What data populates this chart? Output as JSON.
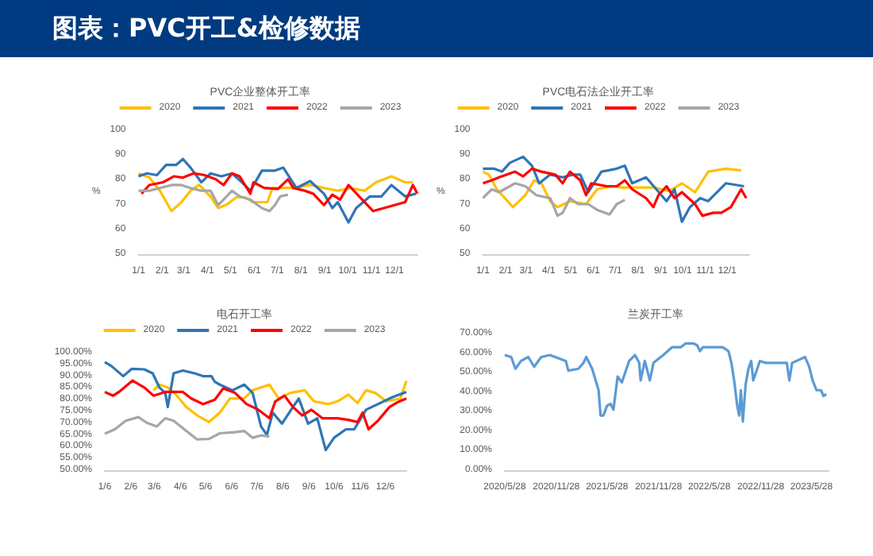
{
  "chart_data": [
    {
      "type": "other",
      "title": "图表：PVC开工&检修数据"
    },
    {
      "type": "line",
      "title": "PVC企业整体开工率",
      "ylabel": "%",
      "legend": "top",
      "marker": "none",
      "xlim": [
        "--01-01",
        "--12-31"
      ],
      "ylim": [
        50,
        100
      ],
      "yticks": [
        50,
        60,
        70,
        80,
        90,
        100
      ],
      "xticks": [
        {
          "value": "--01-01",
          "label": "1/1"
        },
        {
          "value": "--02-01",
          "label": "2/1"
        },
        {
          "value": "--03-01",
          "label": "3/1"
        },
        {
          "value": "--04-01",
          "label": "4/1"
        },
        {
          "value": "--05-01",
          "label": "5/1"
        },
        {
          "value": "--06-01",
          "label": "6/1"
        },
        {
          "value": "--07-01",
          "label": "7/1"
        },
        {
          "value": "--08-01",
          "label": "8/1"
        },
        {
          "value": "--09-01",
          "label": "9/1"
        },
        {
          "value": "--10-01",
          "label": "10/1"
        },
        {
          "value": "--11-01",
          "label": "11/1"
        },
        {
          "value": "--12-01",
          "label": "12/1"
        }
      ],
      "series": [
        {
          "name": "2020",
          "color": "#ffc000",
          "x": [
            "--01-01",
            "--01-15",
            "--01-29",
            "--02-13",
            "--02-26",
            "--03-10",
            "--03-21",
            "--04-05",
            "--04-15",
            "--04-26",
            "--05-09",
            "--05-20",
            "--05-30",
            "--06-18",
            "--06-25",
            "--07-09",
            "--07-26",
            "--08-13",
            "--08-31",
            "--09-18",
            "--10-05",
            "--10-23",
            "--11-07",
            "--11-27",
            "--12-15",
            "--12-25"
          ],
          "values": [
            82.6,
            81,
            75.6,
            67.4,
            71,
            75.6,
            78,
            73.3,
            68.6,
            70,
            73,
            73,
            71,
            71,
            76.7,
            76.7,
            76.7,
            78,
            76.7,
            75.6,
            76.7,
            75.6,
            79,
            81.4,
            79,
            79
          ]
        },
        {
          "name": "2021",
          "color": "#2e75b6",
          "x": [
            "--01-01",
            "--01-12",
            "--01-25",
            "--02-06",
            "--02-19",
            "--02-28",
            "--03-10",
            "--03-24",
            "--04-05",
            "--04-19",
            "--05-03",
            "--05-16",
            "--05-27",
            "--06-11",
            "--06-28",
            "--07-09",
            "--07-26",
            "--08-13",
            "--08-31",
            "--09-11",
            "--09-18",
            "--10-02",
            "--10-12",
            "--10-30",
            "--11-14",
            "--11-27",
            "--12-15",
            "--12-29"
          ],
          "values": [
            81.4,
            82.6,
            81.9,
            86,
            86,
            88.4,
            84.9,
            79,
            82.6,
            81.4,
            82.6,
            79,
            75.6,
            83.7,
            83.7,
            84.9,
            76.7,
            79.5,
            74.4,
            68.6,
            71,
            62.8,
            68.6,
            73.3,
            73.3,
            77.9,
            73.3,
            74.4
          ]
        },
        {
          "name": "2022",
          "color": "#ff0000",
          "x": [
            "--01-05",
            "--01-15",
            "--02-02",
            "--02-16",
            "--02-28",
            "--03-14",
            "--03-28",
            "--04-12",
            "--04-22",
            "--05-03",
            "--05-13",
            "--05-27",
            "--05-31",
            "--06-14",
            "--07-02",
            "--07-15",
            "--07-22",
            "--08-06",
            "--08-17",
            "--08-31",
            "--09-11",
            "--09-21",
            "--10-02",
            "--10-16",
            "--11-03",
            "--11-17",
            "--12-01",
            "--12-15",
            "--12-25",
            "--12-31"
          ],
          "values": [
            74.4,
            77.9,
            79,
            81.4,
            80.9,
            82.6,
            81.9,
            80.2,
            77.9,
            82.6,
            81.4,
            74.4,
            79,
            76.7,
            76.3,
            80.2,
            76.7,
            75.6,
            74.4,
            69.8,
            74,
            72,
            77.9,
            73.3,
            67.4,
            68.6,
            69.8,
            71,
            77.9,
            74.4
          ]
        },
        {
          "name": "2023",
          "color": "#a6a6a6",
          "x": [
            "--01-01",
            "--01-15",
            "--01-29",
            "--02-13",
            "--02-26",
            "--03-10",
            "--03-24",
            "--04-05",
            "--04-15",
            "--04-26",
            "--05-03",
            "--05-13",
            "--05-27",
            "--06-11",
            "--06-21",
            "--06-28",
            "--07-05",
            "--07-15"
          ],
          "values": [
            75.6,
            75.6,
            76.7,
            77.9,
            77.9,
            76.7,
            75.6,
            75.6,
            69.8,
            73.3,
            75.6,
            73.3,
            72,
            68.6,
            67.4,
            69.8,
            73.3,
            74
          ]
        }
      ]
    },
    {
      "type": "line",
      "title": "PVC电石法企业开工率",
      "ylabel": "%",
      "legend": "top",
      "marker": "none",
      "xlim": [
        "--01-01",
        "--12-31"
      ],
      "ylim": [
        50,
        100
      ],
      "yticks": [
        50,
        60,
        70,
        80,
        90,
        100
      ],
      "xticks": [
        {
          "value": "--01-01",
          "label": "1/1"
        },
        {
          "value": "--02-01",
          "label": "2/1"
        },
        {
          "value": "--03-01",
          "label": "3/1"
        },
        {
          "value": "--04-01",
          "label": "4/1"
        },
        {
          "value": "--05-01",
          "label": "5/1"
        },
        {
          "value": "--06-01",
          "label": "6/1"
        },
        {
          "value": "--07-01",
          "label": "7/1"
        },
        {
          "value": "--08-01",
          "label": "8/1"
        },
        {
          "value": "--09-01",
          "label": "9/1"
        },
        {
          "value": "--10-01",
          "label": "10/1"
        },
        {
          "value": "--11-01",
          "label": "11/1"
        },
        {
          "value": "--12-01",
          "label": "12/1"
        }
      ],
      "series": [
        {
          "name": "2020",
          "color": "#ffc000",
          "x": [
            "--01-01",
            "--01-09",
            "--01-20",
            "--02-11",
            "--02-28",
            "--03-12",
            "--03-22",
            "--04-03",
            "--04-13",
            "--04-30",
            "--05-22",
            "--06-06",
            "--06-27",
            "--07-10",
            "--08-01",
            "--08-22",
            "--09-13",
            "--09-30",
            "--10-18",
            "--11-05",
            "--11-29",
            "--12-20"
          ],
          "values": [
            83.3,
            82.1,
            76.2,
            69,
            73.8,
            79.8,
            78.6,
            71.4,
            69,
            71.4,
            70.2,
            76.2,
            77.4,
            76.9,
            76.9,
            76.9,
            75.5,
            78.6,
            75,
            83.3,
            84.5,
            83.8
          ]
        },
        {
          "name": "2021",
          "color": "#2e75b6",
          "x": [
            "--01-01",
            "--01-16",
            "--01-27",
            "--02-07",
            "--02-25",
            "--03-09",
            "--03-19",
            "--04-03",
            "--04-20",
            "--05-04",
            "--05-14",
            "--05-25",
            "--06-12",
            "--07-03",
            "--07-14",
            "--07-24",
            "--08-12",
            "--08-26",
            "--09-09",
            "--09-20",
            "--09-30",
            "--10-11",
            "--10-25",
            "--11-05",
            "--11-29",
            "--12-24"
          ],
          "values": [
            84.5,
            84.5,
            83.3,
            86.9,
            89.3,
            85.7,
            78.6,
            82.1,
            81,
            82.1,
            82.1,
            75,
            83.3,
            84.5,
            85.7,
            78.6,
            81,
            76.2,
            71.4,
            76.2,
            63.1,
            69,
            72.6,
            71.4,
            78.6,
            77.4
          ]
        },
        {
          "name": "2022",
          "color": "#ff0000",
          "x": [
            "--01-01",
            "--01-13",
            "--01-23",
            "--02-14",
            "--02-25",
            "--03-09",
            "--03-22",
            "--04-10",
            "--04-20",
            "--04-30",
            "--05-14",
            "--05-22",
            "--05-29",
            "--06-19",
            "--07-03",
            "--07-14",
            "--07-24",
            "--08-12",
            "--08-22",
            "--08-29",
            "--09-09",
            "--09-20",
            "--09-30",
            "--10-18",
            "--10-28",
            "--11-12",
            "--11-23",
            "--12-06",
            "--12-20",
            "--12-27"
          ],
          "values": [
            78.6,
            79.8,
            81,
            83.3,
            81.4,
            84.5,
            83.3,
            82.1,
            78.6,
            83.3,
            79.8,
            73.8,
            78.6,
            77.4,
            77.4,
            79.8,
            76.2,
            72.6,
            69,
            73.8,
            77.4,
            72.6,
            75,
            70.2,
            65.5,
            66.7,
            66.7,
            69,
            76.2,
            72.6
          ]
        },
        {
          "name": "2023",
          "color": "#a6a6a6",
          "x": [
            "--01-01",
            "--01-13",
            "--01-23",
            "--02-14",
            "--02-28",
            "--03-15",
            "--04-03",
            "--04-13",
            "--04-20",
            "--04-30",
            "--05-11",
            "--05-25",
            "--06-06",
            "--06-23",
            "--07-03",
            "--07-14"
          ],
          "values": [
            72.6,
            76.2,
            75,
            78.6,
            77.4,
            73.8,
            72.6,
            65.5,
            66.7,
            72.6,
            70.2,
            70.2,
            67.9,
            66,
            70.2,
            71.9
          ]
        }
      ]
    },
    {
      "type": "line",
      "title": "电石开工率",
      "legend": "top",
      "marker": "none",
      "xlim": [
        "--01-06",
        "--12-31"
      ],
      "ylim": [
        50,
        100
      ],
      "yticks": [
        {
          "value": 50,
          "label": "50.00%"
        },
        {
          "value": 55,
          "label": "55.00%"
        },
        {
          "value": 60,
          "label": "60.00%"
        },
        {
          "value": 65,
          "label": "65.00%"
        },
        {
          "value": 70,
          "label": "70.00%"
        },
        {
          "value": 75,
          "label": "75.00%"
        },
        {
          "value": 80,
          "label": "80.00%"
        },
        {
          "value": 85,
          "label": "85.00%"
        },
        {
          "value": 90,
          "label": "90.00%"
        },
        {
          "value": 95,
          "label": "95.00%"
        },
        {
          "value": 100,
          "label": "100.00%"
        }
      ],
      "xticks": [
        {
          "value": "--01-06",
          "label": "1/6"
        },
        {
          "value": "--02-06",
          "label": "2/6"
        },
        {
          "value": "--03-06",
          "label": "3/6"
        },
        {
          "value": "--04-06",
          "label": "4/6"
        },
        {
          "value": "--05-06",
          "label": "5/6"
        },
        {
          "value": "--06-06",
          "label": "6/6"
        },
        {
          "value": "--07-06",
          "label": "7/6"
        },
        {
          "value": "--08-06",
          "label": "8/6"
        },
        {
          "value": "--09-06",
          "label": "9/6"
        },
        {
          "value": "--10-06",
          "label": "10/6"
        },
        {
          "value": "--11-06",
          "label": "11/6"
        },
        {
          "value": "--12-06",
          "label": "12/6"
        }
      ],
      "series": [
        {
          "name": "2020",
          "color": "#ffc000",
          "x": [
            "--03-05",
            "--03-12",
            "--03-22",
            "--04-02",
            "--04-13",
            "--04-26",
            "--05-10",
            "--05-23",
            "--06-04",
            "--06-21",
            "--07-01",
            "--07-21",
            "--08-01",
            "--08-15",
            "--09-01",
            "--09-12",
            "--09-29",
            "--10-10",
            "--10-23",
            "--11-03",
            "--11-13",
            "--11-24",
            "--12-07",
            "--12-24",
            "--12-31"
          ],
          "values": [
            84,
            86.4,
            85.2,
            81.7,
            76.9,
            73.3,
            70.5,
            74.5,
            80.5,
            80.5,
            84,
            86.4,
            80.5,
            82.9,
            84,
            79.3,
            78.1,
            79.3,
            82.1,
            78.6,
            84,
            82.9,
            79.3,
            80.5,
            88
          ]
        },
        {
          "name": "2021",
          "color": "#2e75b6",
          "x": [
            "--01-06",
            "--01-14",
            "--01-28",
            "--02-07",
            "--02-22",
            "--03-04",
            "--03-12",
            "--03-19",
            "--03-22",
            "--03-29",
            "--04-09",
            "--04-23",
            "--05-03",
            "--05-13",
            "--05-17",
            "--05-23",
            "--06-07",
            "--06-21",
            "--07-01",
            "--07-11",
            "--07-18",
            "--07-25",
            "--08-05",
            "--08-18",
            "--08-25",
            "--09-05",
            "--09-16",
            "--09-26",
            "--10-06",
            "--10-20",
            "--10-30",
            "--11-13",
            "--11-27",
            "--12-14",
            "--12-31"
          ],
          "values": [
            96,
            94.3,
            90,
            93.1,
            92.9,
            91.2,
            85.2,
            82.9,
            76.9,
            91.2,
            92.4,
            91.2,
            90,
            90,
            87.6,
            86.4,
            84,
            86.4,
            82.9,
            68.6,
            65,
            74.5,
            69.8,
            76.9,
            80.5,
            69.8,
            72.1,
            58.6,
            63.8,
            67.4,
            67.4,
            75.7,
            78.1,
            81,
            83.3
          ]
        },
        {
          "name": "2022",
          "color": "#ff0000",
          "x": [
            "--01-06",
            "--01-16",
            "--01-24",
            "--02-08",
            "--02-22",
            "--03-05",
            "--03-19",
            "--04-09",
            "--04-19",
            "--05-03",
            "--05-17",
            "--05-27",
            "--06-10",
            "--06-24",
            "--07-08",
            "--07-21",
            "--07-28",
            "--08-08",
            "--08-18",
            "--08-29",
            "--09-09",
            "--09-22",
            "--10-10",
            "--10-23",
            "--11-03",
            "--11-09",
            "--11-16",
            "--11-27",
            "--12-11",
            "--12-21",
            "--12-31"
          ],
          "values": [
            83.3,
            81.7,
            83.6,
            88.1,
            85.2,
            81.7,
            83.3,
            83.3,
            80.5,
            78.1,
            80,
            84.8,
            82.9,
            78.1,
            75.7,
            72.1,
            79.3,
            81.7,
            76.9,
            73.3,
            75.7,
            72.1,
            72.1,
            71.4,
            70.5,
            74.5,
            67.4,
            71,
            76.9,
            79,
            80.5
          ]
        },
        {
          "name": "2023",
          "color": "#a6a6a6",
          "x": [
            "--01-06",
            "--01-18",
            "--01-31",
            "--02-15",
            "--02-25",
            "--03-09",
            "--03-19",
            "--03-29",
            "--04-13",
            "--04-26",
            "--05-10",
            "--05-23",
            "--06-10",
            "--06-21",
            "--07-01",
            "--07-11",
            "--07-21"
          ],
          "values": [
            65.5,
            67.4,
            71,
            72.6,
            70.2,
            68.6,
            72.1,
            71,
            66.7,
            63.1,
            63.3,
            65.7,
            66.2,
            66.7,
            63.8,
            64.8,
            64.3
          ]
        }
      ]
    },
    {
      "type": "line",
      "title": "兰炭开工率",
      "marker": "none",
      "xlim": [
        "2020-05-28",
        "2023-07-28"
      ],
      "ylim": [
        0,
        70
      ],
      "yticks": [
        {
          "value": 0,
          "label": "0.00%"
        },
        {
          "value": 10,
          "label": "10.00%"
        },
        {
          "value": 20,
          "label": "20.00%"
        },
        {
          "value": 30,
          "label": "30.00%"
        },
        {
          "value": 40,
          "label": "40.00%"
        },
        {
          "value": 50,
          "label": "50.00%"
        },
        {
          "value": 60,
          "label": "60.00%"
        },
        {
          "value": 70,
          "label": "70.00%"
        }
      ],
      "xticks": [
        {
          "value": "2020-05-28",
          "label": "2020/5/28"
        },
        {
          "value": "2020-11-28",
          "label": "2020/11/28"
        },
        {
          "value": "2021-05-28",
          "label": "2021/5/28"
        },
        {
          "value": "2021-11-28",
          "label": "2021/11/28"
        },
        {
          "value": "2022-05-28",
          "label": "2022/5/28"
        },
        {
          "value": "2022-11-28",
          "label": "2022/11/28"
        },
        {
          "value": "2023-05-28",
          "label": "2023/5/28"
        }
      ],
      "series": [
        {
          "color": "#5b9bd5",
          "x": [
            "2020-05-28",
            "2020-06-20",
            "2020-07-05",
            "2020-07-25",
            "2020-08-20",
            "2020-09-10",
            "2020-10-05",
            "2020-11-05",
            "2021-01-01",
            "2021-01-10",
            "2021-02-15",
            "2021-03-05",
            "2021-03-15",
            "2021-04-05",
            "2021-04-28",
            "2021-05-05",
            "2021-05-15",
            "2021-05-28",
            "2021-06-10",
            "2021-06-20",
            "2021-07-05",
            "2021-07-20",
            "2021-08-15",
            "2021-09-05",
            "2021-09-20",
            "2021-09-25",
            "2021-10-10",
            "2021-10-28",
            "2021-11-10",
            "2021-12-15",
            "2022-01-15",
            "2022-02-15",
            "2022-03-05",
            "2022-04-01",
            "2022-04-15",
            "2022-04-25",
            "2022-05-05",
            "2022-06-03",
            "2022-07-15",
            "2022-08-05",
            "2022-08-15",
            "2022-08-25",
            "2022-09-05",
            "2022-09-12",
            "2022-09-18",
            "2022-09-25",
            "2022-10-05",
            "2022-10-15",
            "2022-10-25",
            "2022-11-01",
            "2022-11-25",
            "2022-12-15",
            "2023-01-28",
            "2023-03-01",
            "2023-03-10",
            "2023-03-20",
            "2023-05-05",
            "2023-05-20",
            "2023-06-01",
            "2023-06-15",
            "2023-07-01",
            "2023-07-10",
            "2023-07-20"
          ],
          "values": [
            59,
            58,
            52,
            56,
            58,
            53,
            58,
            59,
            56,
            51,
            52,
            55,
            58,
            52,
            41,
            28,
            28,
            33,
            34,
            31,
            48,
            45,
            56,
            59,
            55,
            46,
            56,
            46,
            55,
            59,
            63,
            63,
            65,
            65,
            64,
            61,
            63,
            63,
            63,
            61,
            55,
            46,
            33,
            28,
            41,
            25,
            44,
            52,
            56,
            46,
            56,
            55,
            55,
            55,
            46,
            55,
            58,
            53,
            46,
            41,
            41,
            38,
            39
          ]
        }
      ]
    }
  ]
}
